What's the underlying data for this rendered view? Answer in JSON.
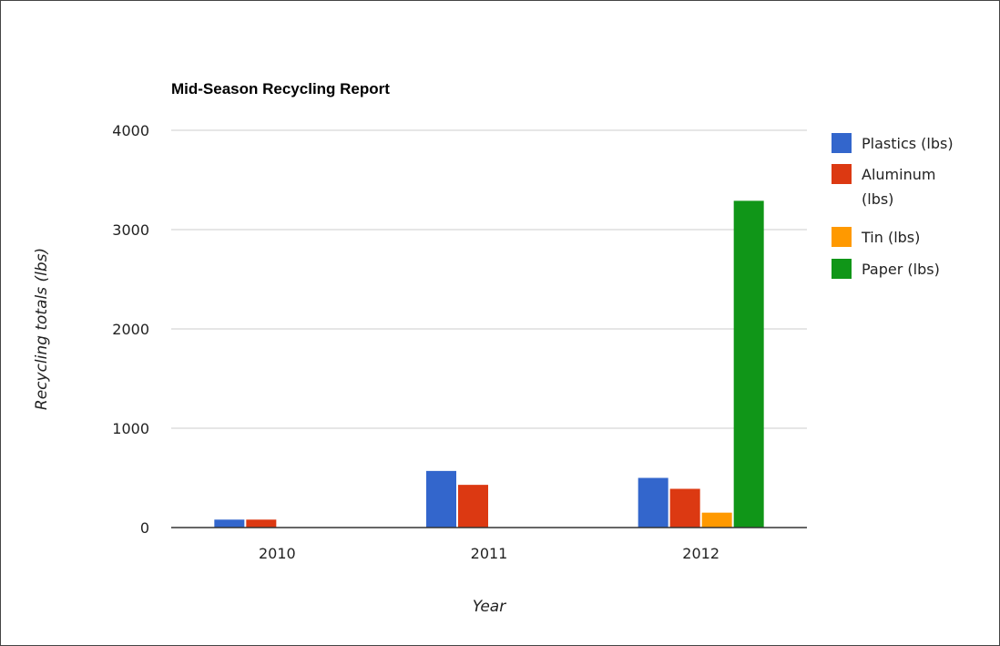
{
  "chart_data": {
    "type": "bar",
    "title": "Mid-Season Recycling Report",
    "xlabel": "Year",
    "ylabel": "Recycling totals (lbs)",
    "categories": [
      "2010",
      "2011",
      "2012"
    ],
    "ylim": [
      0,
      4000
    ],
    "yticks": [
      0,
      1000,
      2000,
      3000,
      4000
    ],
    "grid": true,
    "legend_position": "right",
    "series": [
      {
        "name": "Plastics (lbs)",
        "legend_lines": [
          "Plastics (lbs)"
        ],
        "color": "#3366cc",
        "values": [
          80,
          570,
          500
        ]
      },
      {
        "name": "Aluminum (lbs)",
        "legend_lines": [
          "Aluminum",
          "(lbs)"
        ],
        "color": "#dc3912",
        "values": [
          80,
          430,
          390
        ]
      },
      {
        "name": "Tin (lbs)",
        "legend_lines": [
          "Tin (lbs)"
        ],
        "color": "#ff9900",
        "values": [
          0,
          0,
          150
        ]
      },
      {
        "name": "Paper (lbs)",
        "legend_lines": [
          "Paper (lbs)"
        ],
        "color": "#109618",
        "values": [
          0,
          0,
          3290
        ]
      }
    ]
  }
}
